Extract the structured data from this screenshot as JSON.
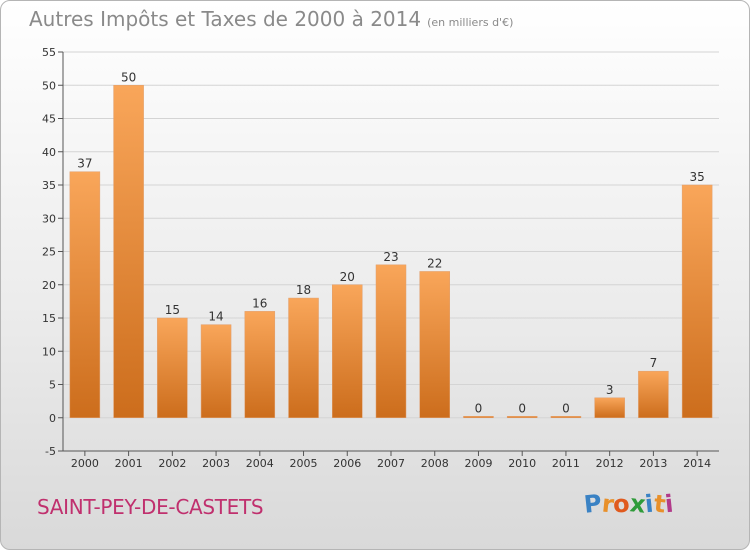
{
  "header": {
    "title": "Autres Impôts et Taxes de 2000 à 2014",
    "unit": "(en milliers d'€)"
  },
  "footer": {
    "commune": "SAINT-PEY-DE-CASTETS",
    "logo_letters": [
      "P",
      "r",
      "o",
      "x",
      "i",
      "t",
      "i"
    ],
    "logo_colors": [
      "#3a82c4",
      "#e8902a",
      "#e05a1e",
      "#2f9b3a",
      "#3a82c4",
      "#e8902a",
      "#b23a8a"
    ]
  },
  "chart_data": {
    "type": "bar",
    "title": "Autres Impôts et Taxes de 2000 à 2014",
    "categories": [
      "2000",
      "2001",
      "2002",
      "2003",
      "2004",
      "2005",
      "2006",
      "2007",
      "2008",
      "2009",
      "2010",
      "2011",
      "2012",
      "2013",
      "2014"
    ],
    "values": [
      37,
      50,
      15,
      14,
      16,
      18,
      20,
      23,
      22,
      0,
      0,
      0,
      3,
      7,
      35
    ],
    "ylim": [
      -5,
      55
    ],
    "yticks": [
      -5,
      0,
      5,
      10,
      15,
      20,
      25,
      30,
      35,
      40,
      45,
      50,
      55
    ],
    "grid": true,
    "bar_color_top": "#f9a65a",
    "bar_color_bottom": "#cc6d1c"
  }
}
